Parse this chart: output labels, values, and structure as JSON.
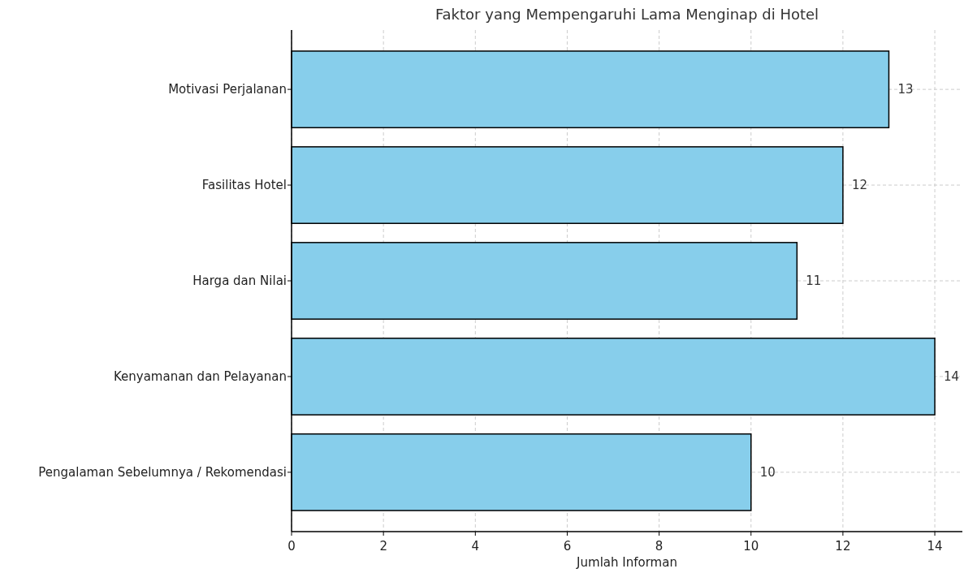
{
  "chart_data": {
    "type": "bar",
    "orientation": "horizontal",
    "title": "Faktor yang Mempengaruhi Lama Menginap di Hotel",
    "xlabel": "Jumlah Informan",
    "categories": [
      "Motivasi Perjalanan",
      "Fasilitas Hotel",
      "Harga dan Nilai",
      "Kenyamanan dan Pelayanan",
      "Pengalaman Sebelumnya / Rekomendasi"
    ],
    "values": [
      13,
      12,
      11,
      14,
      10
    ],
    "color": "#87ceeb",
    "xlim": [
      0,
      14.6
    ],
    "xticks": [
      0,
      2,
      4,
      6,
      8,
      10,
      12,
      14
    ],
    "grid": true,
    "data_labels": true
  }
}
